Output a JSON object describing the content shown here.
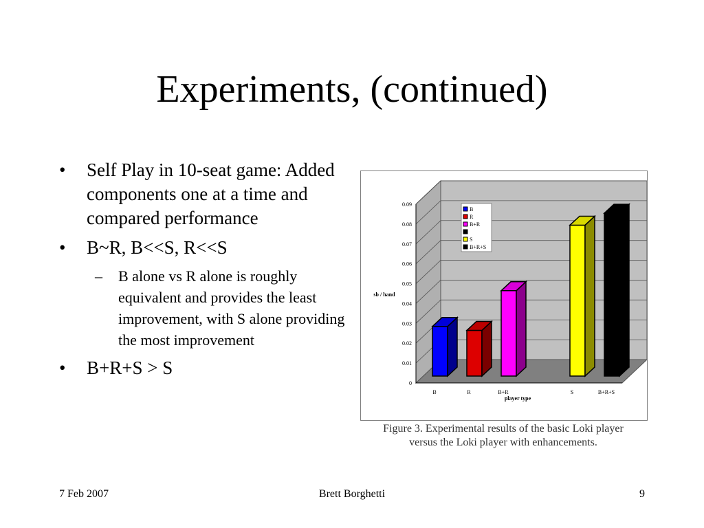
{
  "slide": {
    "title": "Experiments, (continued)",
    "bullets": [
      {
        "level": 1,
        "text": "Self Play in 10-seat game: Added components one at a time and compared performance"
      },
      {
        "level": 1,
        "text": "B~R, B<<S, R<<S"
      },
      {
        "level": 2,
        "text": "B alone vs R alone is roughly equivalent and provides the least improvement, with S alone providing the most improvement"
      },
      {
        "level": 1,
        "text": "B+R+S > S"
      }
    ],
    "bullet_glyph": "•",
    "dash_glyph": "–",
    "caption_line1": "Figure 3. Experimental results of the basic Loki player",
    "caption_line2": "versus the Loki player with enhancements.",
    "footer": {
      "date": "7 Feb 2007",
      "author": "Brett Borghetti",
      "page": "9"
    }
  },
  "chart_data": {
    "type": "bar",
    "title": "",
    "xlabel": "player type",
    "ylabel": "sb / hand",
    "ylim": [
      0,
      0.09
    ],
    "yticks": [
      "0",
      "0.01",
      "0.02",
      "0.03",
      "0.04",
      "0.05",
      "0.06",
      "0.07",
      "0.08",
      "0.09"
    ],
    "categories": [
      "B",
      "R",
      "B+R",
      "",
      "S",
      "B+R+S"
    ],
    "values": [
      0.025,
      0.023,
      0.043,
      null,
      0.076,
      0.082
    ],
    "colors": [
      "#0000ff",
      "#dd0000",
      "#ff00ff",
      "#ffffff",
      "#ffff00",
      "#000000"
    ],
    "legend": [
      "B",
      "R",
      "B+R",
      "",
      "S",
      "B+R+S"
    ],
    "legend_position": "top-left",
    "grid": true,
    "wall_color": "#c0c0c0",
    "floor_color": "#808080"
  }
}
